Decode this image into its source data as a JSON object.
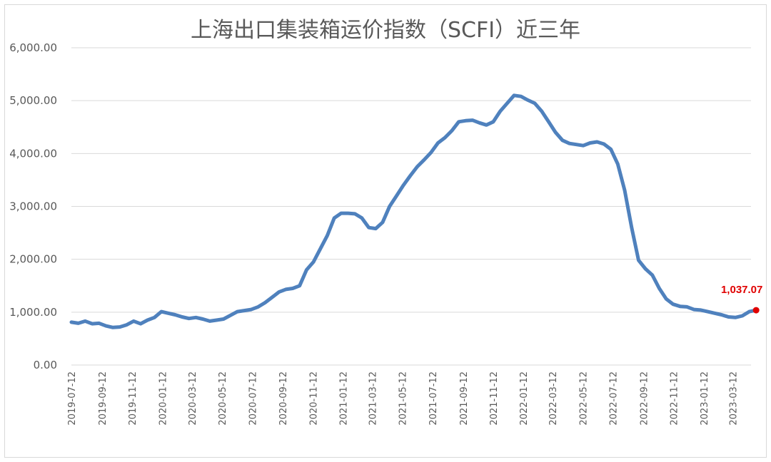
{
  "chart_data": {
    "type": "line",
    "title": "上海出口集装箱运价指数（SCFI）近三年",
    "xlabel": "",
    "ylabel": "",
    "ylim": [
      0,
      6000
    ],
    "yticks": [
      "0.00",
      "1,000.00",
      "2,000.00",
      "3,000.00",
      "4,000.00",
      "5,000.00",
      "6,000.00"
    ],
    "ytick_values": [
      0,
      1000,
      2000,
      3000,
      4000,
      5000,
      6000
    ],
    "xticks": [
      "2019-07-12",
      "2019-09-12",
      "2019-11-12",
      "2020-01-12",
      "2020-03-12",
      "2020-05-12",
      "2020-07-12",
      "2020-09-12",
      "2020-11-12",
      "2021-01-12",
      "2021-03-12",
      "2021-05-12",
      "2021-07-12",
      "2021-09-12",
      "2021-11-12",
      "2022-01-12",
      "2022-03-12",
      "2022-05-12",
      "2022-07-12",
      "2022-09-12",
      "2022-11-12",
      "2023-01-12",
      "2023-03-12"
    ],
    "grid": true,
    "legend": "none",
    "line_color": "#4f81bd",
    "end_marker_color": "#e00000",
    "end_label": "1,037.07",
    "series": [
      {
        "x": [
          "2019-07-12",
          "2019-07-26",
          "2019-08-09",
          "2019-08-23",
          "2019-09-06",
          "2019-09-20",
          "2019-10-04",
          "2019-10-18",
          "2019-11-01",
          "2019-11-15",
          "2019-11-29",
          "2019-12-13",
          "2019-12-27",
          "2020-01-10",
          "2020-01-24",
          "2020-02-07",
          "2020-02-21",
          "2020-03-06",
          "2020-03-20",
          "2020-04-03",
          "2020-04-17",
          "2020-05-01",
          "2020-05-15",
          "2020-05-29",
          "2020-06-12",
          "2020-06-26",
          "2020-07-10",
          "2020-07-24",
          "2020-08-07",
          "2020-08-21",
          "2020-09-04",
          "2020-09-18",
          "2020-10-02",
          "2020-10-16",
          "2020-10-30",
          "2020-11-13",
          "2020-11-27",
          "2020-12-11",
          "2020-12-25",
          "2021-01-08",
          "2021-01-22",
          "2021-02-05",
          "2021-02-19",
          "2021-03-05",
          "2021-03-19",
          "2021-04-02",
          "2021-04-16",
          "2021-04-30",
          "2021-05-14",
          "2021-05-28",
          "2021-06-11",
          "2021-06-25",
          "2021-07-09",
          "2021-07-23",
          "2021-08-06",
          "2021-08-20",
          "2021-09-03",
          "2021-09-17",
          "2021-10-01",
          "2021-10-15",
          "2021-10-29",
          "2021-11-12",
          "2021-11-26",
          "2021-12-10",
          "2021-12-24",
          "2022-01-07",
          "2022-01-21",
          "2022-02-04",
          "2022-02-18",
          "2022-03-04",
          "2022-03-18",
          "2022-04-01",
          "2022-04-15",
          "2022-04-29",
          "2022-05-13",
          "2022-05-27",
          "2022-06-10",
          "2022-06-24",
          "2022-07-08",
          "2022-07-22",
          "2022-08-05",
          "2022-08-19",
          "2022-09-02",
          "2022-09-16",
          "2022-09-30",
          "2022-10-14",
          "2022-10-28",
          "2022-11-11",
          "2022-11-25",
          "2022-12-09",
          "2022-12-23",
          "2023-01-06",
          "2023-01-20",
          "2023-02-03",
          "2023-02-17",
          "2023-03-03",
          "2023-03-17",
          "2023-03-31",
          "2023-04-14",
          "2023-04-28"
        ],
        "y": [
          810,
          790,
          830,
          780,
          790,
          740,
          710,
          720,
          760,
          830,
          780,
          850,
          900,
          1010,
          980,
          950,
          910,
          880,
          900,
          870,
          830,
          850,
          870,
          940,
          1010,
          1030,
          1050,
          1100,
          1180,
          1280,
          1380,
          1430,
          1450,
          1500,
          1800,
          1950,
          2200,
          2450,
          2780,
          2870,
          2870,
          2860,
          2780,
          2600,
          2580,
          2700,
          3000,
          3200,
          3400,
          3580,
          3750,
          3880,
          4020,
          4200,
          4300,
          4430,
          4600,
          4620,
          4630,
          4580,
          4540,
          4600,
          4800,
          4950,
          5100,
          5080,
          5010,
          4950,
          4800,
          4600,
          4400,
          4250,
          4190,
          4170,
          4150,
          4200,
          4220,
          4180,
          4080,
          3800,
          3300,
          2600,
          1980,
          1820,
          1700,
          1450,
          1250,
          1150,
          1110,
          1100,
          1050,
          1040,
          1010,
          980,
          950,
          910,
          900,
          930,
          1010,
          1037.07
        ]
      }
    ]
  }
}
